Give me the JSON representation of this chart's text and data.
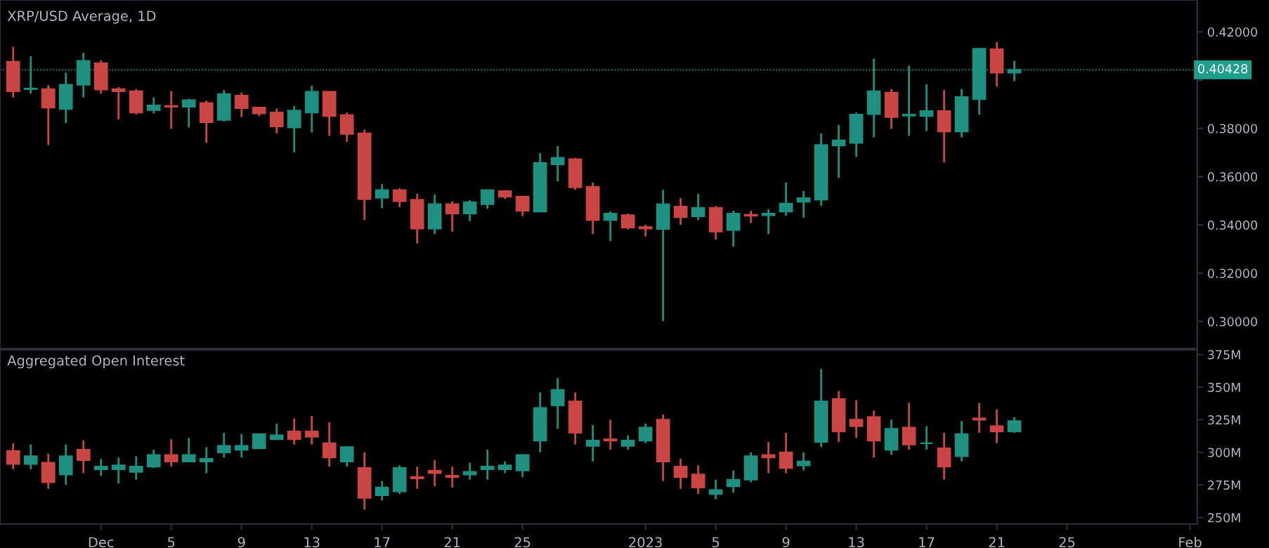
{
  "chart_data": [
    {
      "type": "candlestick",
      "title": "XRP/USD Average, 1D",
      "tick_labels": "y",
      "grid": false,
      "x": [
        "2022-11-26",
        "2022-11-27",
        "2022-11-28",
        "2022-11-29",
        "2022-11-30",
        "2022-12-01",
        "2022-12-02",
        "2022-12-03",
        "2022-12-04",
        "2022-12-05",
        "2022-12-06",
        "2022-12-07",
        "2022-12-08",
        "2022-12-09",
        "2022-12-10",
        "2022-12-11",
        "2022-12-12",
        "2022-12-13",
        "2022-12-14",
        "2022-12-15",
        "2022-12-16",
        "2022-12-17",
        "2022-12-18",
        "2022-12-19",
        "2022-12-20",
        "2022-12-21",
        "2022-12-22",
        "2022-12-23",
        "2022-12-24",
        "2022-12-25",
        "2022-12-26",
        "2022-12-27",
        "2022-12-28",
        "2022-12-29",
        "2022-12-30",
        "2022-12-31",
        "2023-01-01",
        "2023-01-02",
        "2023-01-03",
        "2023-01-04",
        "2023-01-05",
        "2023-01-06",
        "2023-01-07",
        "2023-01-08",
        "2023-01-09",
        "2023-01-10",
        "2023-01-11",
        "2023-01-12",
        "2023-01-13",
        "2023-01-14",
        "2023-01-15",
        "2023-01-16",
        "2023-01-17",
        "2023-01-18",
        "2023-01-19",
        "2023-01-20",
        "2023-01-21",
        "2023-01-22"
      ],
      "ohlc": [
        [
          0.4076,
          0.4138,
          0.3928,
          0.3954
        ],
        [
          0.3963,
          0.4099,
          0.3944,
          0.3965
        ],
        [
          0.3963,
          0.3979,
          0.3731,
          0.3886
        ],
        [
          0.388,
          0.4031,
          0.3822,
          0.3981
        ],
        [
          0.3981,
          0.4113,
          0.3928,
          0.408
        ],
        [
          0.407,
          0.4082,
          0.3944,
          0.3961
        ],
        [
          0.3963,
          0.3971,
          0.3837,
          0.3954
        ],
        [
          0.3954,
          0.3963,
          0.3857,
          0.3866
        ],
        [
          0.3876,
          0.3928,
          0.3862,
          0.3895
        ],
        [
          0.3893,
          0.3954,
          0.3798,
          0.389
        ],
        [
          0.389,
          0.3923,
          0.3804,
          0.3917
        ],
        [
          0.3905,
          0.3915,
          0.374,
          0.3826
        ],
        [
          0.3835,
          0.3959,
          0.3828,
          0.3942
        ],
        [
          0.3936,
          0.3948,
          0.3847,
          0.3884
        ],
        [
          0.3886,
          0.389,
          0.3851,
          0.3862
        ],
        [
          0.3866,
          0.3882,
          0.3779,
          0.3808
        ],
        [
          0.3804,
          0.3893,
          0.3701,
          0.3874
        ],
        [
          0.3866,
          0.3977,
          0.3783,
          0.3952
        ],
        [
          0.3952,
          0.3954,
          0.3769,
          0.3851
        ],
        [
          0.3855,
          0.3866,
          0.3744,
          0.3777
        ],
        [
          0.3779,
          0.3795,
          0.342,
          0.3507
        ],
        [
          0.3513,
          0.357,
          0.3469,
          0.3544
        ],
        [
          0.3544,
          0.3552,
          0.3474,
          0.3498
        ],
        [
          0.3504,
          0.3529,
          0.3323,
          0.3385
        ],
        [
          0.3385,
          0.3527,
          0.3362,
          0.3486
        ],
        [
          0.3486,
          0.3498,
          0.3372,
          0.3447
        ],
        [
          0.3447,
          0.3502,
          0.3416,
          0.3494
        ],
        [
          0.3486,
          0.3544,
          0.3467,
          0.3544
        ],
        [
          0.354,
          0.3544,
          0.3507,
          0.3517
        ],
        [
          0.3517,
          0.3517,
          0.3436,
          0.3459
        ],
        [
          0.3455,
          0.3698,
          0.3455,
          0.3657
        ],
        [
          0.3651,
          0.3727,
          0.3581,
          0.3678
        ],
        [
          0.3672,
          0.3678,
          0.3546,
          0.3556
        ],
        [
          0.3558,
          0.3575,
          0.3362,
          0.342
        ],
        [
          0.342,
          0.3455,
          0.3333,
          0.3447
        ],
        [
          0.344,
          0.3447,
          0.3381,
          0.3389
        ],
        [
          0.3391,
          0.3401,
          0.3352,
          0.3385
        ],
        [
          0.3383,
          0.3546,
          0.3001,
          0.3486
        ],
        [
          0.3476,
          0.3511,
          0.3401,
          0.3432
        ],
        [
          0.3436,
          0.3529,
          0.342,
          0.3471
        ],
        [
          0.3471,
          0.3478,
          0.3339,
          0.3372
        ],
        [
          0.3379,
          0.3459,
          0.331,
          0.3447
        ],
        [
          0.3442,
          0.3459,
          0.3408,
          0.3438
        ],
        [
          0.344,
          0.3465,
          0.3362,
          0.3447
        ],
        [
          0.3455,
          0.3575,
          0.3438,
          0.3488
        ],
        [
          0.3496,
          0.354,
          0.343,
          0.3511
        ],
        [
          0.3505,
          0.3779,
          0.3478,
          0.3731
        ],
        [
          0.3729,
          0.3814,
          0.3595,
          0.375
        ],
        [
          0.374,
          0.3866,
          0.3682,
          0.3857
        ],
        [
          0.3859,
          0.4089,
          0.3763,
          0.3954
        ],
        [
          0.3948,
          0.3963,
          0.3798,
          0.3847
        ],
        [
          0.3853,
          0.406,
          0.3769,
          0.3857
        ],
        [
          0.3851,
          0.3983,
          0.3789,
          0.3872
        ],
        [
          0.3872,
          0.3959,
          0.3659,
          0.3787
        ],
        [
          0.3787,
          0.3963,
          0.3763,
          0.393
        ],
        [
          0.3921,
          0.4134,
          0.3857,
          0.413
        ],
        [
          0.4128,
          0.4157,
          0.3973,
          0.4031
        ],
        [
          0.4031,
          0.408,
          0.3996,
          0.4043
        ]
      ],
      "colors": [
        "#c94644",
        "#1f8f80",
        "#c94644",
        "#1f8f80",
        "#1f8f80",
        "#c94644",
        "#c94644",
        "#c94644",
        "#1f8f80",
        "#c94644",
        "#1f8f80",
        "#c94644",
        "#1f8f80",
        "#c94644",
        "#c94644",
        "#c94644",
        "#1f8f80",
        "#1f8f80",
        "#c94644",
        "#c94644",
        "#c94644",
        "#1f8f80",
        "#c94644",
        "#c94644",
        "#1f8f80",
        "#c94644",
        "#1f8f80",
        "#1f8f80",
        "#c94644",
        "#c94644",
        "#1f8f80",
        "#1f8f80",
        "#c94644",
        "#c94644",
        "#1f8f80",
        "#c94644",
        "#c94644",
        "#1f8f80",
        "#c94644",
        "#1f8f80",
        "#c94644",
        "#1f8f80",
        "#c94644",
        "#1f8f80",
        "#1f8f80",
        "#1f8f80",
        "#1f8f80",
        "#1f8f80",
        "#1f8f80",
        "#1f8f80",
        "#c94644",
        "#1f8f80",
        "#1f8f80",
        "#c94644",
        "#1f8f80",
        "#1f8f80",
        "#c94644",
        "#1f8f80"
      ],
      "xlim": [
        "2022-11-25T06:00",
        "2023-02-01T10:00"
      ],
      "ylim": [
        0.2888,
        0.4332
      ],
      "yticks": [
        {
          "value": 0.3,
          "label": "0.30000"
        },
        {
          "value": 0.32,
          "label": "0.32000"
        },
        {
          "value": 0.34,
          "label": "0.34000"
        },
        {
          "value": 0.36,
          "label": "0.36000"
        },
        {
          "value": 0.38,
          "label": "0.38000"
        },
        {
          "value": 0.4,
          "label": null
        },
        {
          "value": 0.42,
          "label": "0.42000"
        }
      ],
      "ref_lines": [
        {
          "axis": "y",
          "value": 0.40428,
          "label": "0.40428",
          "color": "#1f9e8e"
        }
      ]
    },
    {
      "type": "candlestick",
      "title": "Aggregated Open Interest",
      "grid": false,
      "x": [
        "2022-11-26",
        "2022-11-27",
        "2022-11-28",
        "2022-11-29",
        "2022-11-30",
        "2022-12-01",
        "2022-12-02",
        "2022-12-03",
        "2022-12-04",
        "2022-12-05",
        "2022-12-06",
        "2022-12-07",
        "2022-12-08",
        "2022-12-09",
        "2022-12-10",
        "2022-12-11",
        "2022-12-12",
        "2022-12-13",
        "2022-12-14",
        "2022-12-15",
        "2022-12-16",
        "2022-12-17",
        "2022-12-18",
        "2022-12-19",
        "2022-12-20",
        "2022-12-21",
        "2022-12-22",
        "2022-12-23",
        "2022-12-24",
        "2022-12-25",
        "2022-12-26",
        "2022-12-27",
        "2022-12-28",
        "2022-12-29",
        "2022-12-30",
        "2022-12-31",
        "2023-01-01",
        "2023-01-02",
        "2023-01-03",
        "2023-01-04",
        "2023-01-05",
        "2023-01-06",
        "2023-01-07",
        "2023-01-08",
        "2023-01-09",
        "2023-01-10",
        "2023-01-11",
        "2023-01-12",
        "2023-01-13",
        "2023-01-14",
        "2023-01-15",
        "2023-01-16",
        "2023-01-17",
        "2023-01-18",
        "2023-01-19",
        "2023-01-20",
        "2023-01-21",
        "2023-01-22"
      ],
      "ohlc": [
        [
          301,
          307,
          287,
          291
        ],
        [
          291,
          306,
          287,
          297
        ],
        [
          292,
          299,
          272,
          277
        ],
        [
          283,
          306,
          275,
          297
        ],
        [
          302,
          309,
          284,
          294
        ],
        [
          287,
          295,
          282,
          289
        ],
        [
          287,
          296,
          276,
          290
        ],
        [
          285,
          297,
          279,
          289
        ],
        [
          289,
          302,
          288,
          298
        ],
        [
          298,
          310,
          289,
          293
        ],
        [
          293,
          311,
          293,
          298
        ],
        [
          293,
          304,
          284,
          295
        ],
        [
          300,
          315,
          296,
          305
        ],
        [
          302,
          314,
          296,
          305
        ],
        [
          303,
          314,
          303,
          314
        ],
        [
          310,
          322,
          310,
          313
        ],
        [
          316,
          326,
          306,
          310
        ],
        [
          316,
          328,
          306,
          312
        ],
        [
          307,
          323,
          289,
          296
        ],
        [
          293,
          304,
          289,
          304
        ],
        [
          288,
          300,
          256,
          265
        ],
        [
          267,
          278,
          263,
          273
        ],
        [
          270,
          290,
          268,
          288
        ],
        [
          281,
          289,
          272,
          280
        ],
        [
          286,
          294,
          274,
          284
        ],
        [
          282,
          289,
          273,
          281
        ],
        [
          283,
          292,
          279,
          285
        ],
        [
          287,
          302,
          279,
          289
        ],
        [
          287,
          293,
          284,
          290
        ],
        [
          286,
          298,
          281,
          298
        ],
        [
          309,
          346,
          300,
          334
        ],
        [
          336,
          357,
          318,
          348
        ],
        [
          339,
          346,
          306,
          315
        ],
        [
          305,
          321,
          293,
          309
        ],
        [
          310,
          325,
          302,
          309
        ],
        [
          305,
          313,
          302,
          309
        ],
        [
          309,
          322,
          307,
          319
        ],
        [
          325,
          329,
          278,
          293
        ],
        [
          289,
          295,
          272,
          281
        ],
        [
          283,
          290,
          268,
          273
        ],
        [
          268,
          279,
          264,
          271
        ],
        [
          274,
          286,
          269,
          279
        ],
        [
          279,
          300,
          277,
          297
        ],
        [
          298,
          308,
          284,
          296
        ],
        [
          300,
          315,
          284,
          288
        ],
        [
          290,
          300,
          286,
          293
        ],
        [
          308,
          364,
          304,
          339
        ],
        [
          341,
          347,
          308,
          316
        ],
        [
          325,
          340,
          311,
          320
        ],
        [
          327,
          332,
          296,
          309
        ],
        [
          302,
          325,
          298,
          318
        ],
        [
          319,
          338,
          302,
          306
        ],
        [
          307,
          320,
          302,
          307
        ],
        [
          303,
          315,
          279,
          289
        ],
        [
          297,
          324,
          293,
          314
        ],
        [
          326,
          338,
          315,
          325
        ],
        [
          320,
          333,
          307,
          316
        ],
        [
          316,
          327,
          315,
          324
        ]
      ],
      "colors": [
        "#c94644",
        "#1f8f80",
        "#c94644",
        "#1f8f80",
        "#c94644",
        "#1f8f80",
        "#1f8f80",
        "#1f8f80",
        "#1f8f80",
        "#c94644",
        "#1f8f80",
        "#1f8f80",
        "#1f8f80",
        "#1f8f80",
        "#1f8f80",
        "#1f8f80",
        "#c94644",
        "#c94644",
        "#c94644",
        "#1f8f80",
        "#c94644",
        "#1f8f80",
        "#1f8f80",
        "#c94644",
        "#c94644",
        "#c94644",
        "#1f8f80",
        "#1f8f80",
        "#1f8f80",
        "#1f8f80",
        "#1f8f80",
        "#1f8f80",
        "#c94644",
        "#1f8f80",
        "#c94644",
        "#1f8f80",
        "#1f8f80",
        "#c94644",
        "#c94644",
        "#c94644",
        "#1f8f80",
        "#1f8f80",
        "#1f8f80",
        "#c94644",
        "#c94644",
        "#1f8f80",
        "#1f8f80",
        "#c94644",
        "#c94644",
        "#c94644",
        "#1f8f80",
        "#c94644",
        "#1f8f80",
        "#c94644",
        "#1f8f80",
        "#c94644",
        "#c94644",
        "#1f8f80"
      ],
      "xlim": [
        "2022-11-25T06:00",
        "2023-02-01T10:00"
      ],
      "xticks": [
        {
          "value": "2022-12-01",
          "label": "Dec"
        },
        {
          "value": "2022-12-05",
          "label": "5"
        },
        {
          "value": "2022-12-09",
          "label": "9"
        },
        {
          "value": "2022-12-13",
          "label": "13"
        },
        {
          "value": "2022-12-17",
          "label": "17"
        },
        {
          "value": "2022-12-21",
          "label": "21"
        },
        {
          "value": "2022-12-25",
          "label": "25"
        },
        {
          "value": "2023-01-01",
          "label": "2023"
        },
        {
          "value": "2023-01-05",
          "label": "5"
        },
        {
          "value": "2023-01-09",
          "label": "9"
        },
        {
          "value": "2023-01-13",
          "label": "13"
        },
        {
          "value": "2023-01-17",
          "label": "17"
        },
        {
          "value": "2023-01-21",
          "label": "21"
        },
        {
          "value": "2023-01-25",
          "label": "25"
        },
        {
          "value": "2023-02-01",
          "label": "Feb"
        }
      ],
      "ylim": [
        244.9,
        378.6
      ],
      "yticks": [
        {
          "value": 250,
          "label": "250M"
        },
        {
          "value": 275,
          "label": "275M"
        },
        {
          "value": 300,
          "label": "300M"
        },
        {
          "value": 325,
          "label": "325M"
        },
        {
          "value": 350,
          "label": "350M"
        },
        {
          "value": 375,
          "label": "375M"
        }
      ]
    }
  ]
}
